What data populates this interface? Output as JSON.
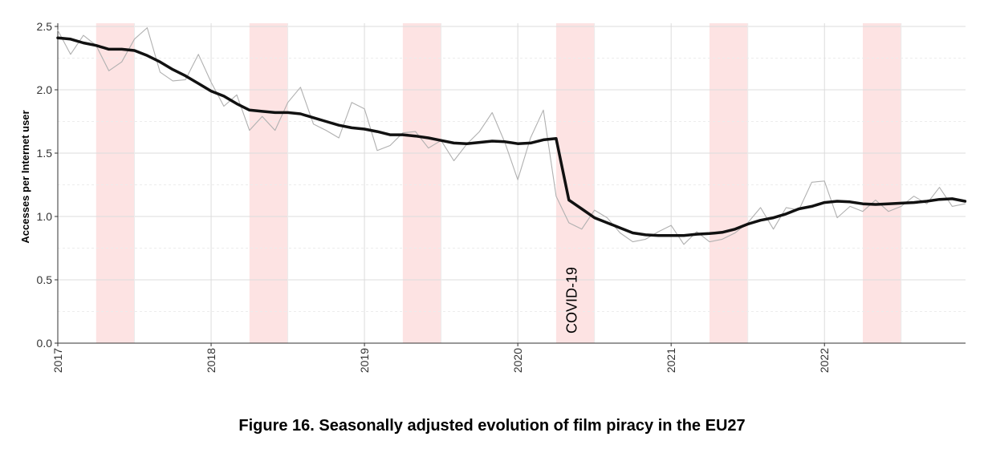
{
  "caption": "Figure 16. Seasonally adjusted evolution of film piracy in the EU27",
  "chart_data": {
    "type": "line",
    "title": "",
    "xlabel": "",
    "ylabel": "Accesses per Internet user",
    "xlim": [
      2017.0,
      2022.92
    ],
    "ylim": [
      0.0,
      2.5
    ],
    "x_ticks": [
      "2017",
      "2018",
      "2019",
      "2020",
      "2021",
      "2022"
    ],
    "y_ticks": [
      "0.0",
      "0.5",
      "1.0",
      "1.5",
      "2.0",
      "2.5"
    ],
    "grid": true,
    "annotation": {
      "text": "COVID-19",
      "x": 2020.3
    },
    "shaded_periods": [
      [
        2017.25,
        2017.5
      ],
      [
        2018.25,
        2018.5
      ],
      [
        2019.25,
        2019.5
      ],
      [
        2020.25,
        2020.5
      ],
      [
        2021.25,
        2021.5
      ],
      [
        2022.25,
        2022.5
      ]
    ],
    "series": [
      {
        "name": "",
        "style": "thin-grey",
        "color": "#b0b0b0",
        "x": [
          2017.0,
          2017.083,
          2017.167,
          2017.25,
          2017.333,
          2017.417,
          2017.5,
          2017.583,
          2017.667,
          2017.75,
          2017.833,
          2017.917,
          2018.0,
          2018.083,
          2018.167,
          2018.25,
          2018.333,
          2018.417,
          2018.5,
          2018.583,
          2018.667,
          2018.75,
          2018.833,
          2018.917,
          2019.0,
          2019.083,
          2019.167,
          2019.25,
          2019.333,
          2019.417,
          2019.5,
          2019.583,
          2019.667,
          2019.75,
          2019.833,
          2019.917,
          2020.0,
          2020.083,
          2020.167,
          2020.25,
          2020.333,
          2020.417,
          2020.5,
          2020.583,
          2020.667,
          2020.75,
          2020.833,
          2020.917,
          2021.0,
          2021.083,
          2021.167,
          2021.25,
          2021.333,
          2021.417,
          2021.5,
          2021.583,
          2021.667,
          2021.75,
          2021.833,
          2021.917,
          2022.0,
          2022.083,
          2022.167,
          2022.25,
          2022.333,
          2022.417,
          2022.5,
          2022.583,
          2022.667,
          2022.75,
          2022.833,
          2022.917
        ],
        "y": [
          2.47,
          2.28,
          2.43,
          2.35,
          2.15,
          2.22,
          2.4,
          2.49,
          2.14,
          2.07,
          2.08,
          2.28,
          2.06,
          1.87,
          1.96,
          1.68,
          1.79,
          1.68,
          1.9,
          2.02,
          1.73,
          1.68,
          1.62,
          1.9,
          1.85,
          1.52,
          1.56,
          1.66,
          1.67,
          1.54,
          1.6,
          1.44,
          1.57,
          1.67,
          1.82,
          1.58,
          1.29,
          1.62,
          1.84,
          1.16,
          0.95,
          0.9,
          1.05,
          0.99,
          0.87,
          0.8,
          0.82,
          0.88,
          0.93,
          0.78,
          0.88,
          0.8,
          0.82,
          0.87,
          0.95,
          1.07,
          0.9,
          1.07,
          1.05,
          1.27,
          1.28,
          0.99,
          1.08,
          1.04,
          1.13,
          1.04,
          1.08,
          1.16,
          1.1,
          1.23,
          1.08,
          1.1
        ]
      },
      {
        "name": "",
        "style": "thick-black",
        "color": "#111111",
        "x": [
          2017.0,
          2017.083,
          2017.167,
          2017.25,
          2017.333,
          2017.417,
          2017.5,
          2017.583,
          2017.667,
          2017.75,
          2017.833,
          2017.917,
          2018.0,
          2018.083,
          2018.167,
          2018.25,
          2018.333,
          2018.417,
          2018.5,
          2018.583,
          2018.667,
          2018.75,
          2018.833,
          2018.917,
          2019.0,
          2019.083,
          2019.167,
          2019.25,
          2019.333,
          2019.417,
          2019.5,
          2019.583,
          2019.667,
          2019.75,
          2019.833,
          2019.917,
          2020.0,
          2020.083,
          2020.167,
          2020.25,
          2020.333,
          2020.417,
          2020.5,
          2020.583,
          2020.667,
          2020.75,
          2020.833,
          2020.917,
          2021.0,
          2021.083,
          2021.167,
          2021.25,
          2021.333,
          2021.417,
          2021.5,
          2021.583,
          2021.667,
          2021.75,
          2021.833,
          2021.917,
          2022.0,
          2022.083,
          2022.167,
          2022.25,
          2022.333,
          2022.417,
          2022.5,
          2022.583,
          2022.667,
          2022.75,
          2022.833,
          2022.917
        ],
        "y": [
          2.41,
          2.4,
          2.37,
          2.35,
          2.32,
          2.32,
          2.31,
          2.27,
          2.22,
          2.16,
          2.11,
          2.05,
          1.99,
          1.95,
          1.89,
          1.84,
          1.83,
          1.82,
          1.82,
          1.81,
          1.78,
          1.75,
          1.72,
          1.7,
          1.69,
          1.67,
          1.645,
          1.645,
          1.635,
          1.62,
          1.6,
          1.58,
          1.575,
          1.585,
          1.595,
          1.59,
          1.575,
          1.58,
          1.605,
          1.615,
          1.13,
          1.06,
          0.99,
          0.95,
          0.91,
          0.87,
          0.855,
          0.85,
          0.85,
          0.85,
          0.86,
          0.865,
          0.875,
          0.9,
          0.94,
          0.97,
          0.99,
          1.02,
          1.06,
          1.08,
          1.11,
          1.12,
          1.115,
          1.1,
          1.095,
          1.1,
          1.105,
          1.11,
          1.12,
          1.135,
          1.14,
          1.12
        ]
      }
    ]
  }
}
